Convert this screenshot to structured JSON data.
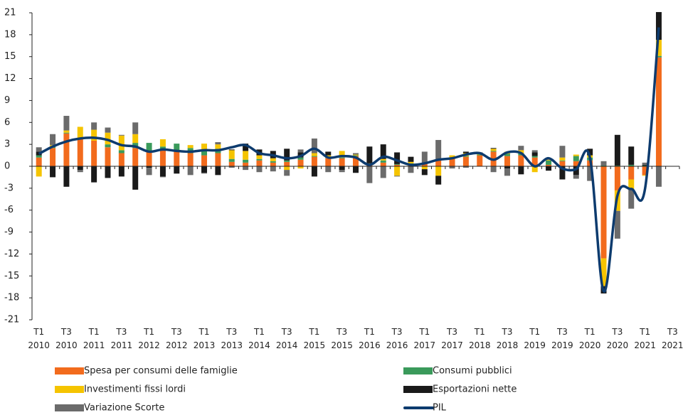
{
  "chart_data": {
    "type": "bar",
    "categories": [
      "T1 2010",
      null,
      "T3 2010",
      null,
      "T1 2011",
      null,
      "T3 2011",
      null,
      "T1 2012",
      null,
      "T3 2012",
      null,
      "T1 2013",
      null,
      "T3 2013",
      null,
      "T1 2014",
      null,
      "T3 2014",
      null,
      "T1 2015",
      null,
      "T3 2015",
      null,
      "T1 2016",
      null,
      "T3 2016",
      null,
      "T1 2017",
      null,
      "T3 2017",
      null,
      "T1 2018",
      null,
      "T3 2018",
      null,
      "T1 2019",
      null,
      "T3 2019",
      null,
      "T1 2020",
      null,
      "T3 2020",
      null,
      "T1 2021",
      null,
      "T3 2021"
    ],
    "series": [
      {
        "name": "Spesa per consumi delle famiglie",
        "color": "#f26b1d",
        "values": [
          1.2,
          2.5,
          4.5,
          3.8,
          3.5,
          2.6,
          1.8,
          2.5,
          2.0,
          2.2,
          2.0,
          1.8,
          1.5,
          1.8,
          0.6,
          0.5,
          0.8,
          0.5,
          0.6,
          0.9,
          1.3,
          1.1,
          1.1,
          1.4,
          0.2,
          0.5,
          0.2,
          0.3,
          0.4,
          0.8,
          1.1,
          1.3,
          1.5,
          2.0,
          1.4,
          1.5,
          1.2,
          0.2,
          0.7,
          0.7,
          0.8,
          -12.6,
          -3.3,
          -1.8,
          -1.2,
          14.9,
          null
        ]
      },
      {
        "name": "Consumi pubblici",
        "color": "#3a9a5b",
        "values": [
          0.3,
          0.2,
          0.1,
          0.1,
          0.0,
          0.4,
          0.4,
          0.7,
          1.2,
          0.5,
          1.1,
          0.7,
          0.6,
          0.6,
          0.4,
          0.4,
          0.2,
          0.2,
          0.2,
          0.3,
          0.1,
          0.2,
          0.1,
          0.1,
          0.1,
          0.3,
          0.1,
          0.1,
          0.1,
          0.1,
          0.1,
          0.1,
          0.1,
          0.1,
          0.3,
          0.3,
          0.2,
          0.6,
          0.1,
          0.7,
          0.4,
          0.1,
          0.1,
          0.2,
          0.1,
          0.2,
          null
        ]
      },
      {
        "name": "Investimenti fissi lordi",
        "color": "#f5c400",
        "values": [
          -1.4,
          0.2,
          0.3,
          1.5,
          1.5,
          1.6,
          2.0,
          1.2,
          0.0,
          1.0,
          0.0,
          0.4,
          1.0,
          0.6,
          1.2,
          1.2,
          0.5,
          0.4,
          -0.5,
          -0.3,
          0.4,
          0.2,
          0.9,
          0.1,
          0.1,
          0.2,
          -1.3,
          0.2,
          -0.4,
          -1.3,
          0.3,
          0.4,
          0.2,
          0.3,
          0.3,
          0.4,
          -0.8,
          0.1,
          0.4,
          0.2,
          0.3,
          -3.8,
          -2.8,
          -1.4,
          -0.1,
          2.2,
          null
        ]
      },
      {
        "name": "Esportazioni nette",
        "color": "#1a1a1a",
        "values": [
          0.5,
          -1.5,
          -2.8,
          -0.5,
          -2.2,
          -1.6,
          -1.4,
          -3.2,
          -0.2,
          -1.4,
          -1.0,
          0.0,
          -0.9,
          -1.2,
          0.1,
          1.0,
          0.8,
          1.0,
          1.6,
          0.7,
          -1.4,
          0.5,
          -0.5,
          -0.9,
          2.3,
          2.0,
          1.6,
          0.7,
          -0.8,
          -1.2,
          0.0,
          0.2,
          0.1,
          0.1,
          -0.3,
          -1.1,
          0.5,
          -0.6,
          -1.8,
          -1.2,
          0.9,
          -1.0,
          4.2,
          2.5,
          0.1,
          3.8,
          null
        ]
      },
      {
        "name": "Variazione Scorte",
        "color": "#6b6b6b",
        "values": [
          0.6,
          1.5,
          2.0,
          -0.3,
          1.0,
          0.7,
          0.1,
          1.6,
          -1.0,
          -0.1,
          0.0,
          -1.2,
          -0.1,
          0.3,
          -0.2,
          -0.5,
          -0.8,
          -0.7,
          -0.8,
          0.4,
          2.0,
          -0.8,
          -0.3,
          0.2,
          -2.3,
          -1.6,
          -0.1,
          -0.9,
          1.5,
          2.7,
          -0.3,
          -0.2,
          0.0,
          -0.8,
          -1.0,
          0.6,
          0.3,
          0.1,
          1.6,
          -0.5,
          -2.0,
          0.6,
          -3.8,
          -2.6,
          0.3,
          -2.8,
          null
        ]
      },
      {
        "name": "PIL",
        "color": "#0d3b6e",
        "line": true,
        "values": [
          1.7,
          2.7,
          3.4,
          3.8,
          3.9,
          3.6,
          2.9,
          2.7,
          2.0,
          2.3,
          2.1,
          2.0,
          2.2,
          2.2,
          2.6,
          2.9,
          1.8,
          1.5,
          1.1,
          1.4,
          2.4,
          1.2,
          1.4,
          1.2,
          0.2,
          1.3,
          0.8,
          0.2,
          0.4,
          0.9,
          1.1,
          1.6,
          1.8,
          0.9,
          1.9,
          1.8,
          0.0,
          1.1,
          -0.3,
          -0.4,
          1.2,
          -17.1,
          -4.0,
          -3.1,
          -3.1,
          19.0,
          null
        ]
      }
    ],
    "ylim": [
      -21,
      21
    ],
    "yticks": [
      -21,
      -18,
      -15,
      -12,
      -9,
      -6,
      -3,
      0,
      3,
      6,
      9,
      12,
      15,
      18,
      21
    ]
  }
}
